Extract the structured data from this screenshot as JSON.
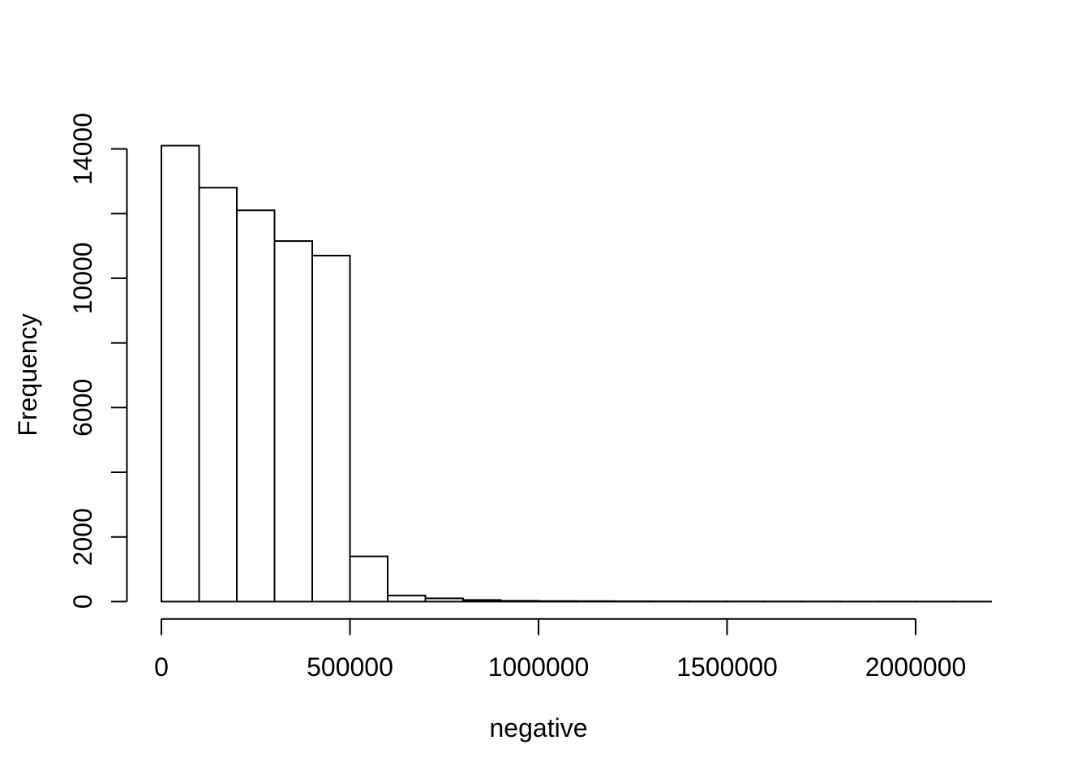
{
  "figure": {
    "background_color": "#ffffff",
    "foreground_color": "#000000"
  },
  "chart_data": {
    "type": "bar",
    "subtype": "histogram",
    "title": "",
    "xlabel": "negative",
    "ylabel": "Frequency",
    "bar_fill": "#ffffff",
    "bar_stroke": "#000000",
    "grid": false,
    "legend": null,
    "bin_start": 0,
    "bin_width": 100000,
    "counts": [
      14100,
      12800,
      12100,
      11150,
      10700,
      1400,
      190,
      100,
      50,
      25,
      18,
      14,
      11,
      9,
      7,
      6,
      5,
      4,
      3,
      3,
      2,
      2
    ],
    "xlim": [
      0,
      2200000
    ],
    "ylim": [
      0,
      14000
    ],
    "x_axis": {
      "range": [
        0,
        2000000
      ],
      "ticks": [
        0,
        500000,
        1000000,
        1500000,
        2000000
      ],
      "tick_labels": [
        "0",
        "500000",
        "1000000",
        "1500000",
        "2000000"
      ]
    },
    "y_axis": {
      "range": [
        0,
        14000
      ],
      "ticks": [
        0,
        2000,
        4000,
        6000,
        8000,
        10000,
        12000,
        14000
      ],
      "labeled_ticks": [
        0,
        2000,
        6000,
        10000,
        14000
      ],
      "tick_labels": [
        "0",
        "2000",
        "6000",
        "10000",
        "14000"
      ]
    }
  }
}
